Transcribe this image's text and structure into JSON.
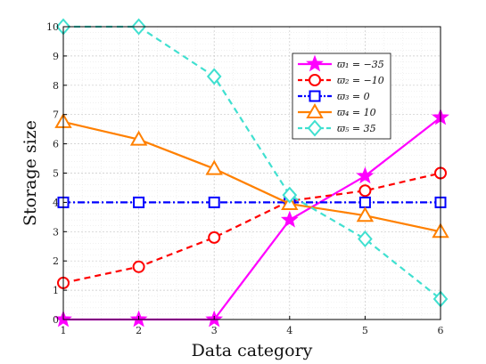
{
  "chart_data": {
    "type": "line",
    "x": [
      1,
      2,
      3,
      4,
      5,
      6
    ],
    "xlabel": "Data category",
    "ylabel": "Storage size",
    "xlim": [
      1,
      6
    ],
    "ylim": [
      0,
      10
    ],
    "xticks": [
      1,
      2,
      3,
      4,
      5,
      6
    ],
    "yticks": [
      0,
      1,
      2,
      3,
      4,
      5,
      6,
      7,
      8,
      9,
      10
    ],
    "grid": true,
    "minor_grid": true,
    "legend_position": "top-right",
    "series": [
      {
        "name": "ϖ₁ = −35",
        "color": "#ff00ff",
        "marker": "star",
        "dash": "solid",
        "values": [
          0,
          0,
          0,
          3.4,
          4.9,
          6.9
        ]
      },
      {
        "name": "ϖ₂ = −10",
        "color": "#ff0000",
        "marker": "circle",
        "dash": "dashed",
        "values": [
          1.25,
          1.8,
          2.8,
          4.05,
          4.4,
          5.0
        ]
      },
      {
        "name": "ϖ₃ = 0",
        "color": "#0000ff",
        "marker": "square",
        "dash": "dashdot",
        "values": [
          4,
          4,
          4,
          4,
          4,
          4
        ]
      },
      {
        "name": "ϖ₄ = 10",
        "color": "#ff8000",
        "marker": "triangle",
        "dash": "solid",
        "values": [
          6.75,
          6.15,
          5.15,
          3.95,
          3.55,
          3.0
        ]
      },
      {
        "name": "ϖ₅ = 35",
        "color": "#40e0d0",
        "marker": "diamond",
        "dash": "dashed",
        "values": [
          10,
          10,
          8.3,
          4.25,
          2.75,
          0.7
        ]
      }
    ]
  }
}
